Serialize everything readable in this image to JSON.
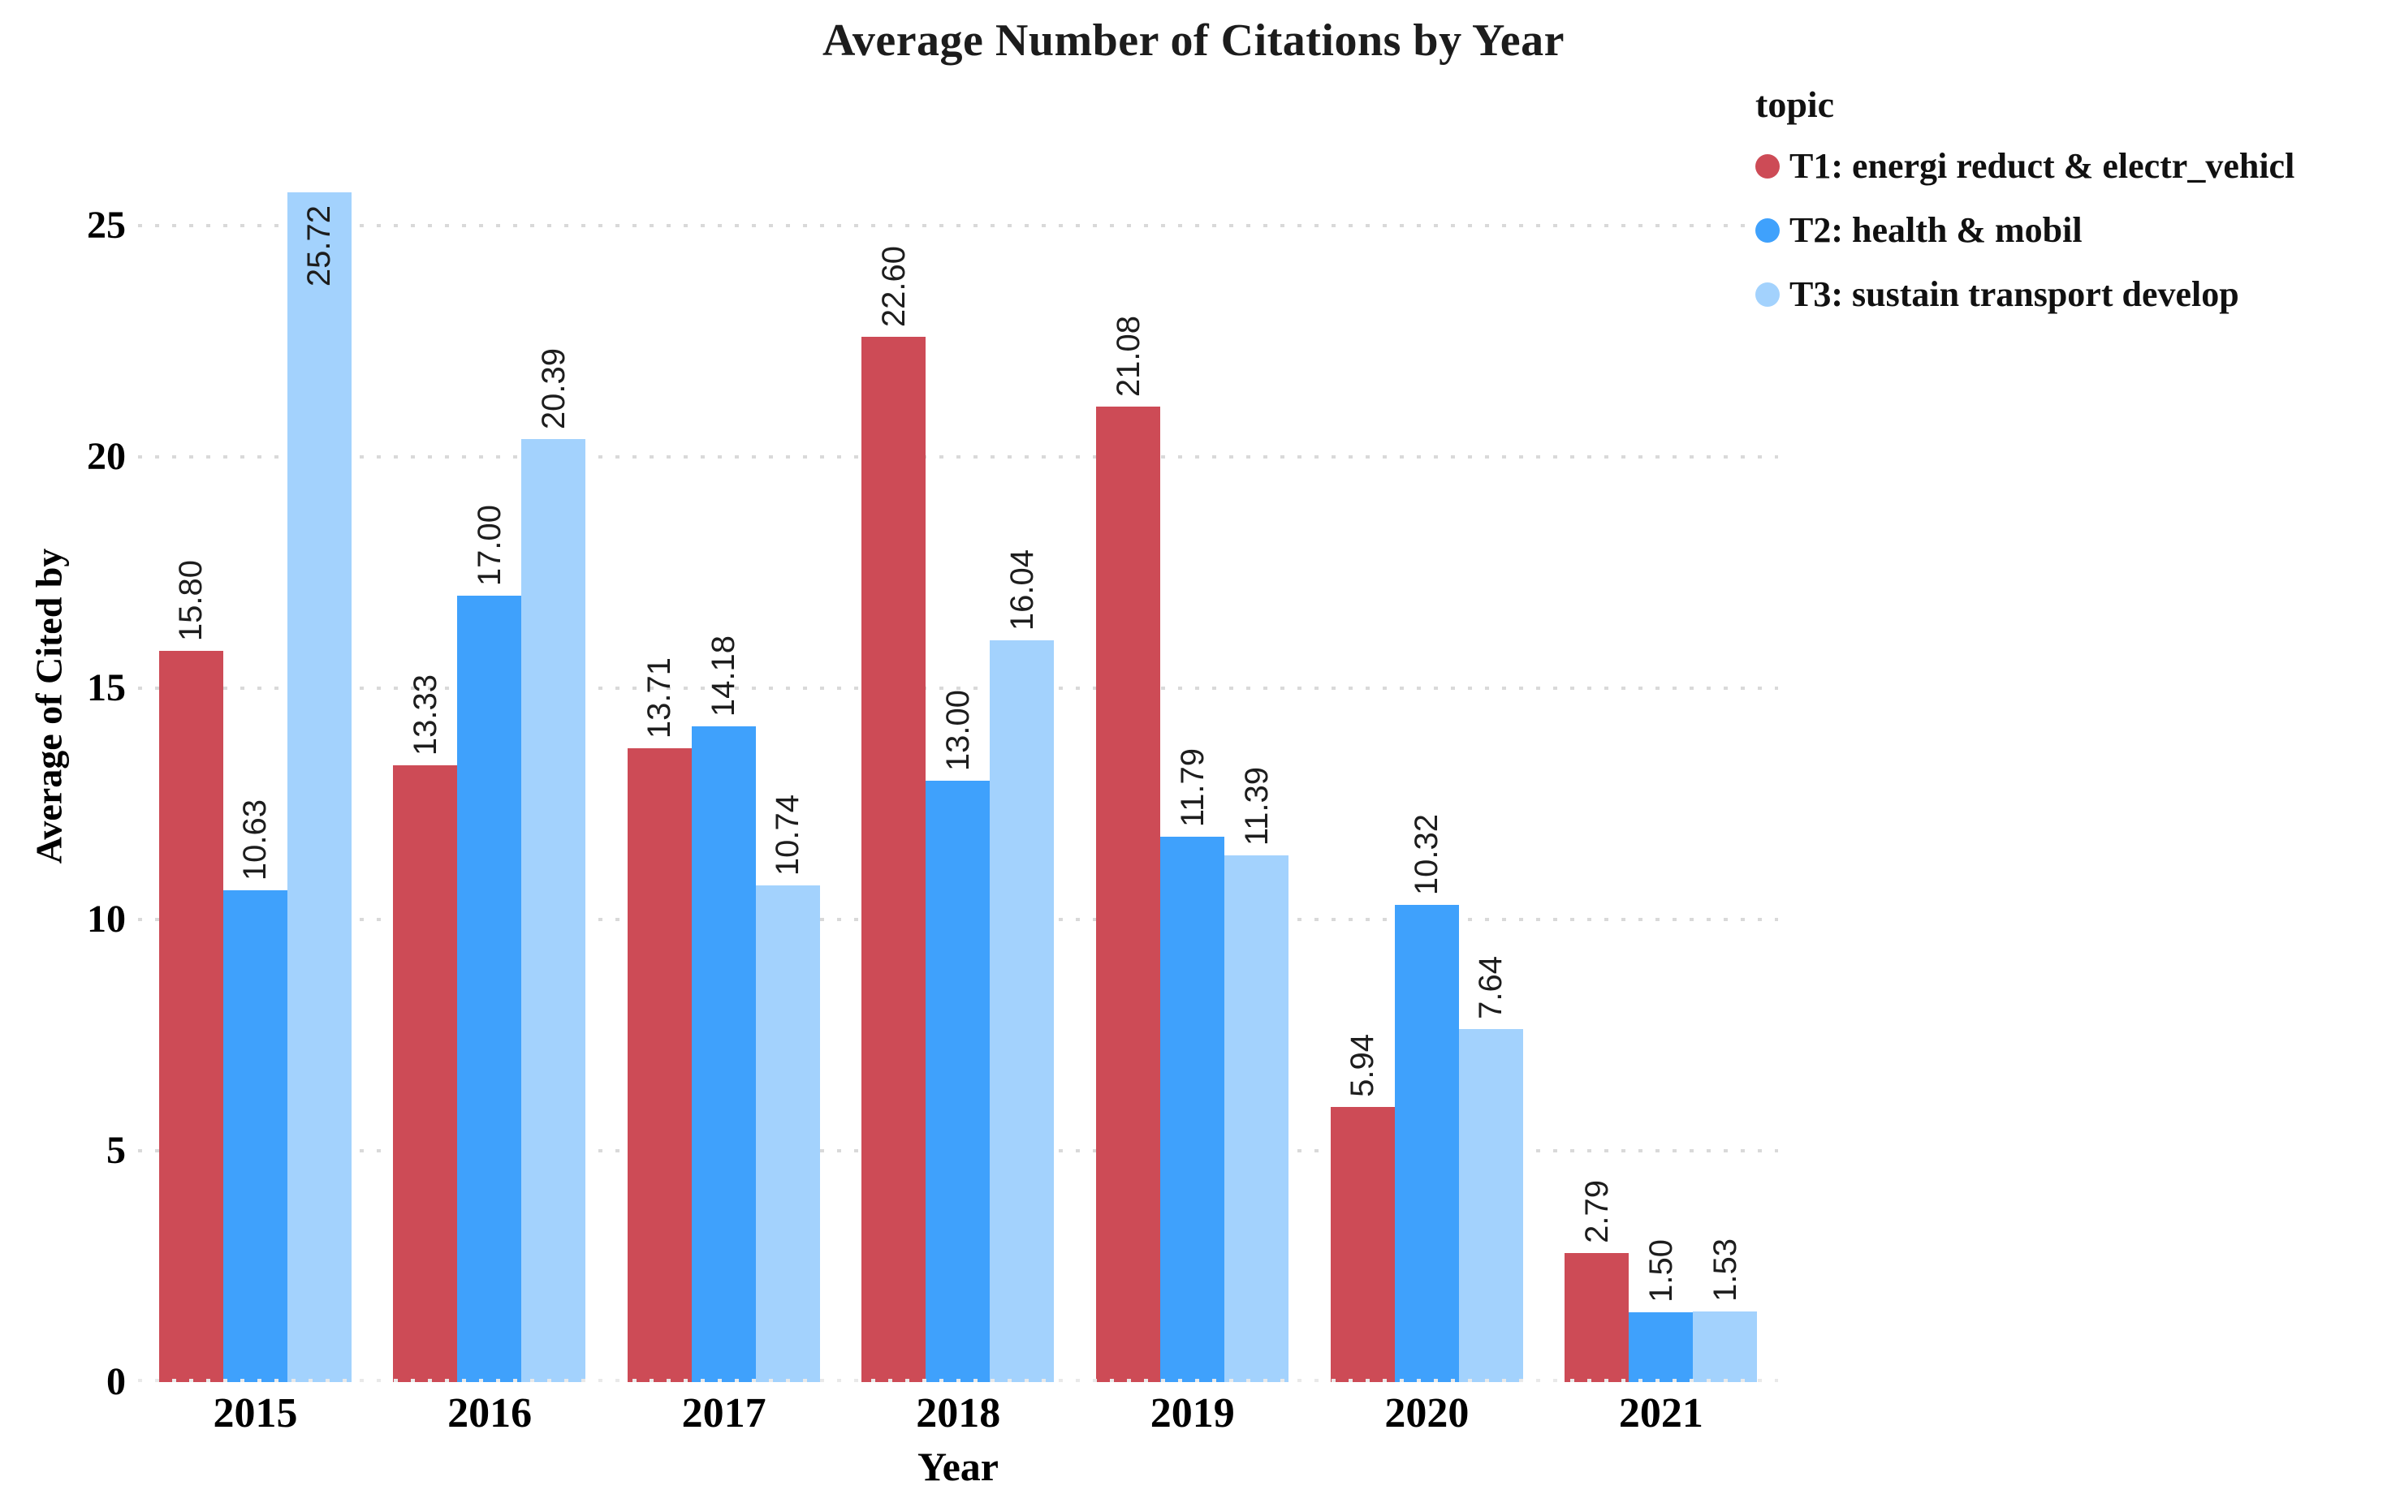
{
  "title": "Average Number of Citations by Year",
  "x_axis": {
    "label": "Year",
    "ticks": [
      "2015",
      "2016",
      "2017",
      "2018",
      "2019",
      "2020",
      "2021"
    ]
  },
  "y_axis": {
    "label": "Average of Cited by",
    "ticks": [
      0,
      5,
      10,
      15,
      20,
      25
    ]
  },
  "legend": {
    "title": "topic",
    "position": "top-right",
    "items": [
      {
        "label": "T1: energi reduct & electr_vehicl",
        "color": "#cd4b56"
      },
      {
        "label": "T2: health & mobil",
        "color": "#3fa1fc"
      },
      {
        "label": "T3: sustain transport develop",
        "color": "#a3d2fd"
      }
    ]
  },
  "chart_data": {
    "type": "bar",
    "title": "Average Number of Citations by Year",
    "xlabel": "Year",
    "ylabel": "Average of Cited by",
    "ylim": [
      0,
      26.2
    ],
    "grid": "horizontal dotted lines at 0,5,10,15,20,25",
    "legend_position": "right",
    "categories": [
      "2015",
      "2016",
      "2017",
      "2018",
      "2019",
      "2020",
      "2021"
    ],
    "series": [
      {
        "name": "T1: energi reduct & electr_vehicl",
        "color": "#cd4b56",
        "values": [
          15.8,
          13.33,
          13.71,
          22.6,
          21.08,
          5.94,
          2.79
        ]
      },
      {
        "name": "T2: health & mobil",
        "color": "#3fa1fc",
        "values": [
          10.63,
          17.0,
          14.18,
          13.0,
          11.79,
          10.32,
          1.5
        ]
      },
      {
        "name": "T3: sustain transport develop",
        "color": "#a3d2fd",
        "values": [
          25.72,
          20.39,
          10.74,
          16.04,
          11.39,
          7.64,
          1.53
        ]
      }
    ],
    "bar_labels": [
      [
        "15.80",
        "13.33",
        "13.71",
        "22.60",
        "21.08",
        "5.94",
        "2.79"
      ],
      [
        "10.63",
        "17.00",
        "14.18",
        "13.00",
        "11.79",
        "10.32",
        "1.50"
      ],
      [
        "25.72",
        "20.39",
        "10.74",
        "16.04",
        "11.39",
        "7.64",
        "1.53"
      ]
    ]
  }
}
